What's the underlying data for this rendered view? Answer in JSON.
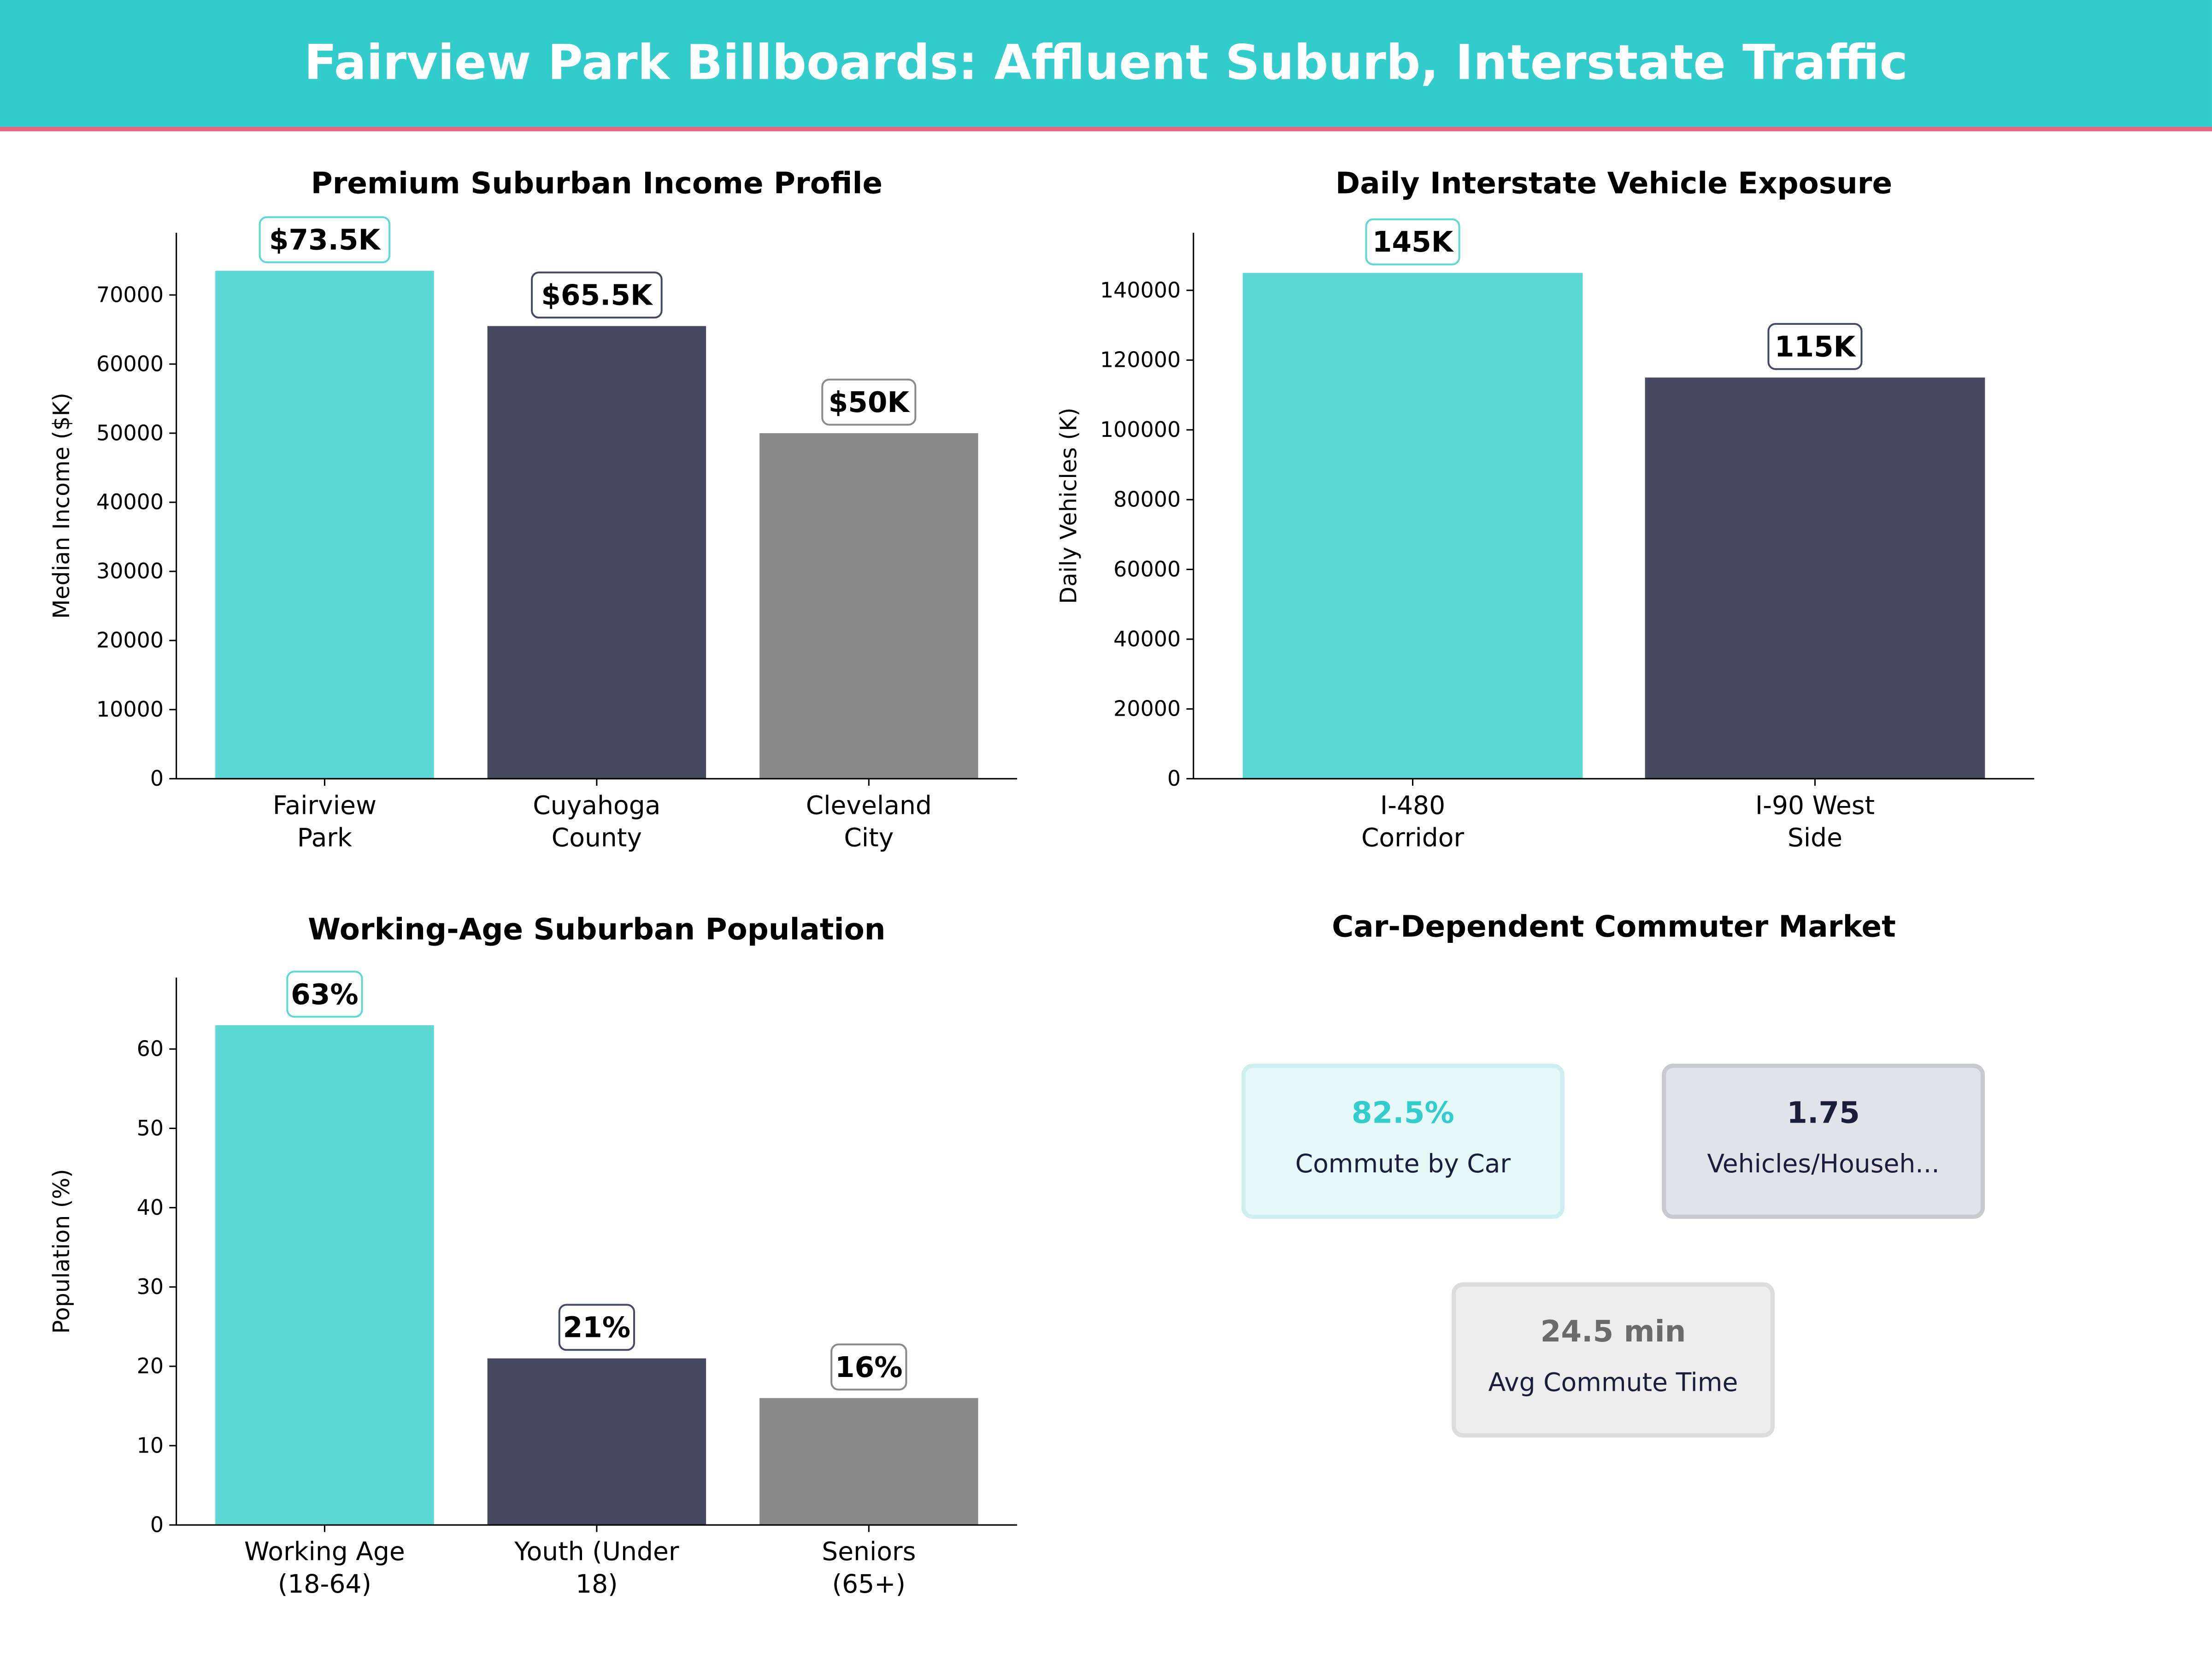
{
  "header": {
    "title": "Fairview Park Billboards: Affluent Suburb, Interstate Traffic"
  },
  "colors": {
    "header_bg": "#33CCCC",
    "header_accent": "#F0637A",
    "teal": "#5DD8D5",
    "navy": "#464A60",
    "gray": "#8A8A8A"
  },
  "chart_data": [
    {
      "type": "bar",
      "title": "Premium Suburban Income Profile",
      "ylabel": "Median Income ($K)",
      "xlabel": "",
      "categories": [
        "Fairview\nPark",
        "Cuyahoga\nCounty",
        "Cleveland\nCity"
      ],
      "values": [
        73500,
        65500,
        50000
      ],
      "data_labels": [
        "$73.5K",
        "$65.5K",
        "$50K"
      ],
      "colors": [
        "#5DD8D5",
        "#464A60",
        "#8A8A8A"
      ],
      "yticks": [
        "0",
        "10000",
        "20000",
        "30000",
        "40000",
        "50000",
        "60000",
        "70000"
      ],
      "ylim": [
        0,
        79000
      ],
      "grid": false
    },
    {
      "type": "bar",
      "title": "Daily Interstate Vehicle Exposure",
      "ylabel": "Daily Vehicles (K)",
      "xlabel": "",
      "categories": [
        "I-480\nCorridor",
        "I-90 West\nSide"
      ],
      "values": [
        145000,
        115000
      ],
      "data_labels": [
        "145K",
        "115K"
      ],
      "colors": [
        "#5DD8D5",
        "#464A60"
      ],
      "yticks": [
        "0",
        "20000",
        "40000",
        "60000",
        "80000",
        "100000",
        "120000",
        "140000"
      ],
      "ylim": [
        0,
        156500
      ],
      "grid": false
    },
    {
      "type": "bar",
      "title": "Working-Age Suburban Population",
      "ylabel": "Population (%)",
      "xlabel": "",
      "categories": [
        "Working Age\n(18-64)",
        "Youth (Under\n18)",
        "Seniors\n(65+)"
      ],
      "values": [
        63,
        21,
        16
      ],
      "data_labels": [
        "63%",
        "21%",
        "16%"
      ],
      "colors": [
        "#5DD8D5",
        "#464A60",
        "#8A8A8A"
      ],
      "yticks": [
        "0",
        "10",
        "20",
        "30",
        "40",
        "50",
        "60"
      ],
      "ylim": [
        0,
        69
      ],
      "grid": false
    }
  ],
  "commuter": {
    "title": "Car-Dependent Commuter Market",
    "cards": [
      {
        "value": "82.5%",
        "label": "Commute by Car",
        "value_color": "#33CCCC",
        "bg": "#E6F7F7",
        "border": "#CDEFEF"
      },
      {
        "value": "1.75",
        "label": "Vehicles/Househ...",
        "value_color": "#1B1E3A",
        "bg": "#E2E3E8",
        "border": "#C9CAD0"
      },
      {
        "value": "24.5 min",
        "label": "Avg Commute Time",
        "value_color": "#6B6B6B",
        "bg": "#EDEDED",
        "border": "#DCDCDC"
      }
    ]
  }
}
